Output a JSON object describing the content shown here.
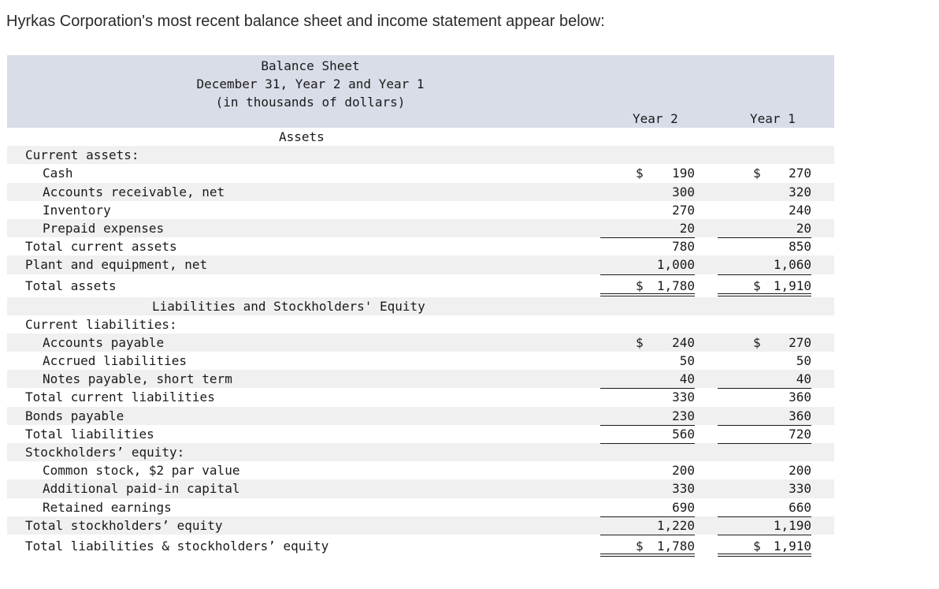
{
  "intro": "Hyrkas Corporation's most recent balance sheet and income statement appear below:",
  "header": {
    "title": "Balance Sheet",
    "date": "December 31, Year 2 and Year 1",
    "units": "(in thousands of dollars)",
    "col_year2": "Year 2",
    "col_year1": "Year 1"
  },
  "sections": {
    "assets": "Assets",
    "liabilities_equity": "Liabilities and Stockholders' Equity"
  },
  "rows": {
    "current_assets": {
      "label": "Current assets:"
    },
    "cash": {
      "label": "Cash",
      "y2": "190",
      "y1": "270"
    },
    "accounts_receivable": {
      "label": "Accounts receivable, net",
      "y2": "300",
      "y1": "320"
    },
    "inventory": {
      "label": "Inventory",
      "y2": "270",
      "y1": "240"
    },
    "prepaid": {
      "label": "Prepaid expenses",
      "y2": "20",
      "y1": "20"
    },
    "total_current_assets": {
      "label": "Total current assets",
      "y2": "780",
      "y1": "850"
    },
    "plant": {
      "label": "Plant and equipment, net",
      "y2": "1,000",
      "y1": "1,060"
    },
    "total_assets": {
      "label": "Total assets",
      "y2": "1,780",
      "y1": "1,910"
    },
    "current_liabilities": {
      "label": "Current liabilities:"
    },
    "accounts_payable": {
      "label": "Accounts payable",
      "y2": "240",
      "y1": "270"
    },
    "accrued": {
      "label": "Accrued liabilities",
      "y2": "50",
      "y1": "50"
    },
    "notes_payable": {
      "label": "Notes payable, short term",
      "y2": "40",
      "y1": "40"
    },
    "total_current_liabilities": {
      "label": "Total current liabilities",
      "y2": "330",
      "y1": "360"
    },
    "bonds": {
      "label": "Bonds payable",
      "y2": "230",
      "y1": "360"
    },
    "total_liabilities": {
      "label": "Total liabilities",
      "y2": "560",
      "y1": "720"
    },
    "stockholders_equity": {
      "label": "Stockholders’ equity:"
    },
    "common_stock": {
      "label": "Common stock, $2 par value",
      "y2": "200",
      "y1": "200"
    },
    "apic": {
      "label": "Additional paid-in capital",
      "y2": "330",
      "y1": "330"
    },
    "retained": {
      "label": "Retained earnings",
      "y2": "690",
      "y1": "660"
    },
    "total_equity": {
      "label": "Total stockholders’ equity",
      "y2": "1,220",
      "y1": "1,190"
    },
    "total_liab_equity": {
      "label": "Total liabilities & stockholders’ equity",
      "y2": "1,780",
      "y1": "1,910"
    }
  }
}
